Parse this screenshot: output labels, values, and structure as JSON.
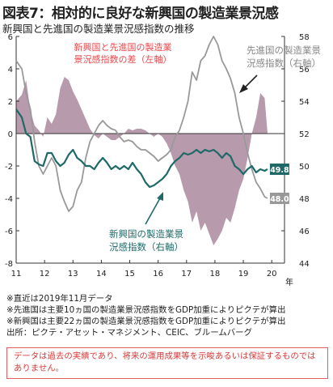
{
  "header": {
    "title": "図表7：相対的に良好な新興国の製造業景況感",
    "subtitle": "新興国と先進国の製造業景況感指数の推移"
  },
  "chart_data": {
    "type": "line",
    "left_axis": {
      "min": -8,
      "max": 6,
      "ticks": [
        -8,
        -6,
        -4,
        -2,
        0,
        2,
        4,
        6
      ]
    },
    "right_axis": {
      "min": 44,
      "max": 58,
      "ticks": [
        44,
        46,
        48,
        50,
        52,
        54,
        56,
        58
      ]
    },
    "x_ticks": [
      "11",
      "12",
      "13",
      "14",
      "15",
      "16",
      "17",
      "18",
      "19",
      "20"
    ],
    "x_unit": "年",
    "grid": false,
    "series": [
      {
        "name": "新興国と先進国の製造業景況感指数の差（左軸）",
        "axis": "left",
        "kind": "area",
        "color": "#b79aac",
        "x": [
          2011.0,
          2011.2,
          2011.35,
          2011.5,
          2011.65,
          2011.8,
          2011.95,
          2012.1,
          2012.25,
          2012.4,
          2012.55,
          2012.7,
          2012.85,
          2013.0,
          2013.15,
          2013.3,
          2013.45,
          2013.6,
          2013.75,
          2013.9,
          2014.05,
          2014.2,
          2014.35,
          2014.5,
          2014.65,
          2014.8,
          2014.95,
          2015.1,
          2015.25,
          2015.4,
          2015.55,
          2015.7,
          2015.85,
          2016.0,
          2016.15,
          2016.3,
          2016.45,
          2016.6,
          2016.75,
          2016.9,
          2017.05,
          2017.2,
          2017.35,
          2017.5,
          2017.65,
          2017.8,
          2017.95,
          2018.1,
          2018.25,
          2018.4,
          2018.55,
          2018.7,
          2018.85,
          2019.0,
          2019.15,
          2019.3,
          2019.45,
          2019.6,
          2019.75,
          2019.85
        ],
        "values": [
          2.0,
          2.4,
          3.3,
          1.4,
          0.5,
          0.2,
          -0.2,
          1.0,
          0.6,
          1.2,
          2.8,
          3.5,
          3.3,
          2.6,
          2.1,
          1.5,
          0.9,
          0.3,
          -0.1,
          -0.3,
          0.0,
          -0.2,
          -0.4,
          -0.4,
          -0.2,
          0.0,
          0.3,
          0.2,
          0.3,
          0.3,
          0.2,
          0.0,
          -0.2,
          0.0,
          -0.2,
          -0.6,
          -1.2,
          -2.0,
          -2.5,
          -3.5,
          -4.2,
          -5.5,
          -4.8,
          -6.0,
          -5.5,
          -6.2,
          -6.9,
          -6.5,
          -6.0,
          -5.2,
          -5.5,
          -4.6,
          -3.5,
          -2.8,
          -1.5,
          0.0,
          1.0,
          2.5,
          2.2,
          0.1
        ]
      },
      {
        "name": "先進国の製造業景況感指数（右軸）",
        "axis": "right",
        "kind": "line",
        "color": "#999999",
        "end_label": "48.0",
        "x": [
          2011.0,
          2011.2,
          2011.35,
          2011.5,
          2011.65,
          2011.8,
          2011.95,
          2012.1,
          2012.25,
          2012.4,
          2012.55,
          2012.7,
          2012.85,
          2013.0,
          2013.15,
          2013.3,
          2013.45,
          2013.6,
          2013.75,
          2013.9,
          2014.05,
          2014.2,
          2014.35,
          2014.5,
          2014.65,
          2014.8,
          2014.95,
          2015.1,
          2015.25,
          2015.4,
          2015.55,
          2015.7,
          2015.85,
          2016.0,
          2016.15,
          2016.3,
          2016.45,
          2016.6,
          2016.75,
          2016.9,
          2017.05,
          2017.2,
          2017.35,
          2017.5,
          2017.65,
          2017.8,
          2017.95,
          2018.1,
          2018.25,
          2018.4,
          2018.55,
          2018.7,
          2018.85,
          2019.0,
          2019.15,
          2019.3,
          2019.45,
          2019.6,
          2019.75,
          2019.85
        ],
        "values": [
          56.5,
          56.0,
          54.5,
          53.5,
          51.5,
          50.0,
          49.5,
          50.0,
          50.5,
          50.0,
          48.5,
          47.8,
          47.2,
          47.5,
          48.5,
          49.0,
          50.5,
          51.5,
          52.0,
          52.5,
          52.8,
          52.5,
          52.3,
          52.2,
          51.8,
          51.5,
          51.6,
          51.5,
          51.2,
          51.0,
          51.0,
          50.8,
          50.6,
          50.3,
          50.5,
          50.7,
          51.0,
          51.8,
          52.2,
          53.0,
          54.0,
          55.8,
          55.3,
          56.5,
          56.8,
          57.5,
          58.0,
          57.5,
          56.5,
          56.0,
          55.4,
          54.5,
          53.0,
          52.0,
          50.8,
          49.8,
          49.0,
          48.6,
          48.1,
          48.0
        ]
      },
      {
        "name": "新興国の製造業景況感指数（右軸）",
        "axis": "right",
        "kind": "line",
        "color": "#1f6a68",
        "end_label": "49.8",
        "x": [
          2011.0,
          2011.2,
          2011.35,
          2011.5,
          2011.65,
          2011.8,
          2011.95,
          2012.1,
          2012.25,
          2012.4,
          2012.55,
          2012.7,
          2012.85,
          2013.0,
          2013.15,
          2013.3,
          2013.45,
          2013.6,
          2013.75,
          2013.9,
          2014.05,
          2014.2,
          2014.35,
          2014.5,
          2014.65,
          2014.8,
          2014.95,
          2015.1,
          2015.25,
          2015.4,
          2015.55,
          2015.7,
          2015.85,
          2016.0,
          2016.15,
          2016.3,
          2016.45,
          2016.6,
          2016.75,
          2016.9,
          2017.05,
          2017.2,
          2017.35,
          2017.5,
          2017.65,
          2017.8,
          2017.95,
          2018.1,
          2018.25,
          2018.4,
          2018.55,
          2018.7,
          2018.85,
          2019.0,
          2019.15,
          2019.3,
          2019.45,
          2019.6,
          2019.75,
          2019.85
        ],
        "values": [
          53.5,
          53.0,
          52.0,
          51.8,
          50.3,
          50.1,
          50.0,
          50.8,
          50.8,
          50.3,
          50.0,
          50.2,
          50.7,
          51.0,
          50.5,
          50.3,
          50.0,
          50.0,
          49.8,
          50.2,
          50.5,
          50.2,
          49.8,
          50.0,
          49.8,
          50.0,
          49.8,
          50.2,
          49.8,
          49.5,
          49.0,
          48.7,
          48.8,
          49.0,
          49.2,
          49.5,
          50.0,
          50.3,
          50.5,
          50.8,
          50.7,
          50.8,
          51.0,
          50.8,
          51.0,
          50.9,
          51.0,
          50.8,
          50.5,
          50.8,
          50.6,
          50.0,
          49.8,
          49.5,
          49.8,
          50.0,
          49.6,
          49.8,
          49.7,
          49.8
        ]
      }
    ]
  },
  "annotations": {
    "diff_label_line1": "新興国と先進国の製造業",
    "diff_label_line2": "景況感指数の差（左軸）",
    "dev_label_line1": "先進国の製造業景",
    "dev_label_line2": "況感指数（右軸）",
    "em_label_line1": "新興国の製造業景",
    "em_label_line2": "況感指数（右軸）"
  },
  "notes": [
    "※直近は2019年11月データ",
    "※先進国は主要10ヵ国の製造業景況感指数をGDP加重によりピクテが算出",
    "※新興国は主要22ヵ国の製造業景況感指数をGDP加重によりピクテが算出",
    "出所：ピクテ・アセット・マネジメント、CEIC、ブルームバーグ"
  ],
  "disclaimer": "データは過去の実績であり、将来の運用成果等を示唆あるいは保証するものではありません。"
}
